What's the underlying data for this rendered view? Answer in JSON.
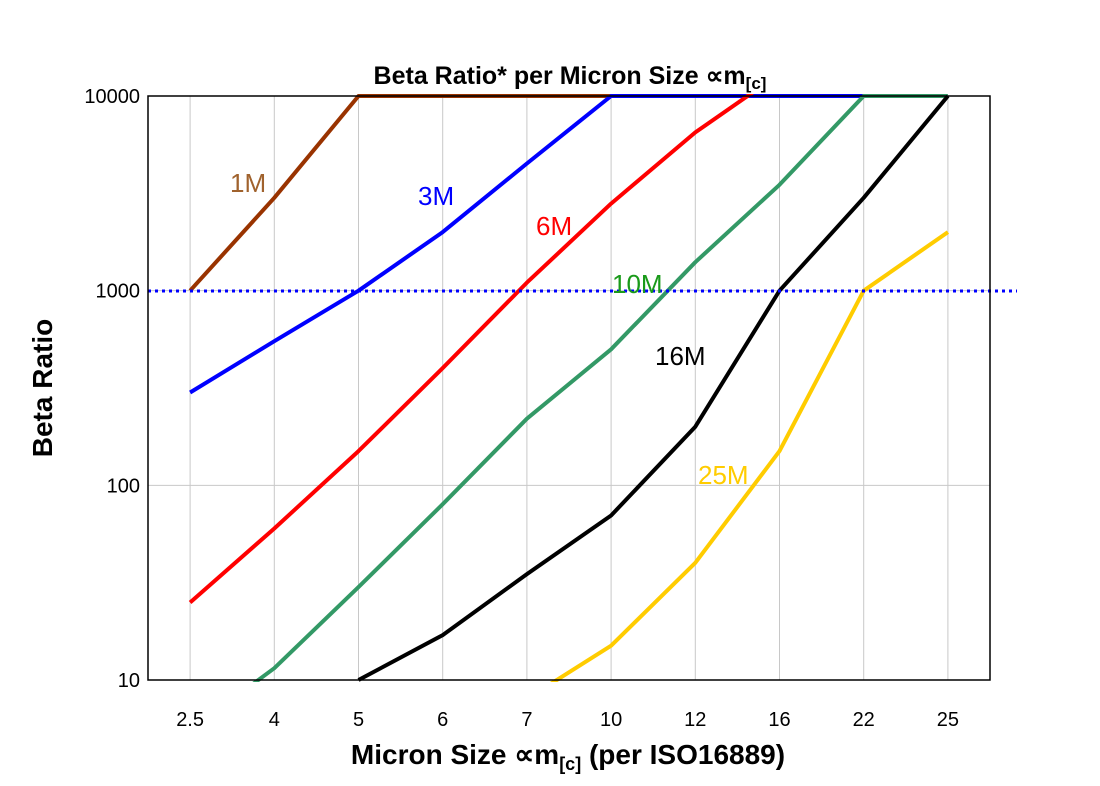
{
  "chart_data": {
    "type": "line",
    "title": "Beta Ratio* per Micron Size ∝m",
    "title_subscript": "[c]",
    "xlabel": "Micron Size ∝m",
    "xlabel_subscript": "[c]",
    "xlabel_suffix": " (per ISO16889)",
    "ylabel": "Beta Ratio",
    "y_scale": "log",
    "ylim": [
      10,
      10000
    ],
    "y_ticks": [
      "10",
      "100",
      "1000",
      "10000"
    ],
    "categories": [
      "2.5",
      "4",
      "5",
      "6",
      "7",
      "10",
      "12",
      "16",
      "22",
      "25"
    ],
    "grid": true,
    "reference_line": {
      "value": 1000,
      "style": "dotted",
      "color": "#0000ff"
    },
    "series": [
      {
        "name": "1M",
        "color": "#993300",
        "label_color": "#a0622d",
        "values": [
          1000,
          3000,
          10000,
          10000,
          10000,
          10000,
          null,
          null,
          null,
          null
        ]
      },
      {
        "name": "3M",
        "color": "#0000ff",
        "label_color": "#0000ff",
        "values": [
          300,
          550,
          1000,
          2000,
          4500,
          10000,
          10000,
          10000,
          10000,
          null
        ]
      },
      {
        "name": "6M",
        "color": "#ff0000",
        "label_color": "#ff0000",
        "values": [
          25,
          60,
          150,
          400,
          1100,
          2800,
          6500,
          13000,
          null,
          null
        ]
      },
      {
        "name": "10M",
        "color": "#339966",
        "label_color": "#1a9a1a",
        "values": [
          5.5,
          11.5,
          30,
          80,
          220,
          500,
          1400,
          3500,
          10000,
          10000
        ]
      },
      {
        "name": "16M",
        "color": "#000000",
        "label_color": "#000000",
        "values": [
          null,
          null,
          10,
          17,
          35,
          70,
          200,
          1000,
          3000,
          10000
        ]
      },
      {
        "name": "25M",
        "color": "#ffcc00",
        "label_color": "#ffcc00",
        "values": [
          null,
          null,
          null,
          null,
          8,
          15,
          40,
          150,
          1000,
          2000
        ]
      }
    ]
  }
}
